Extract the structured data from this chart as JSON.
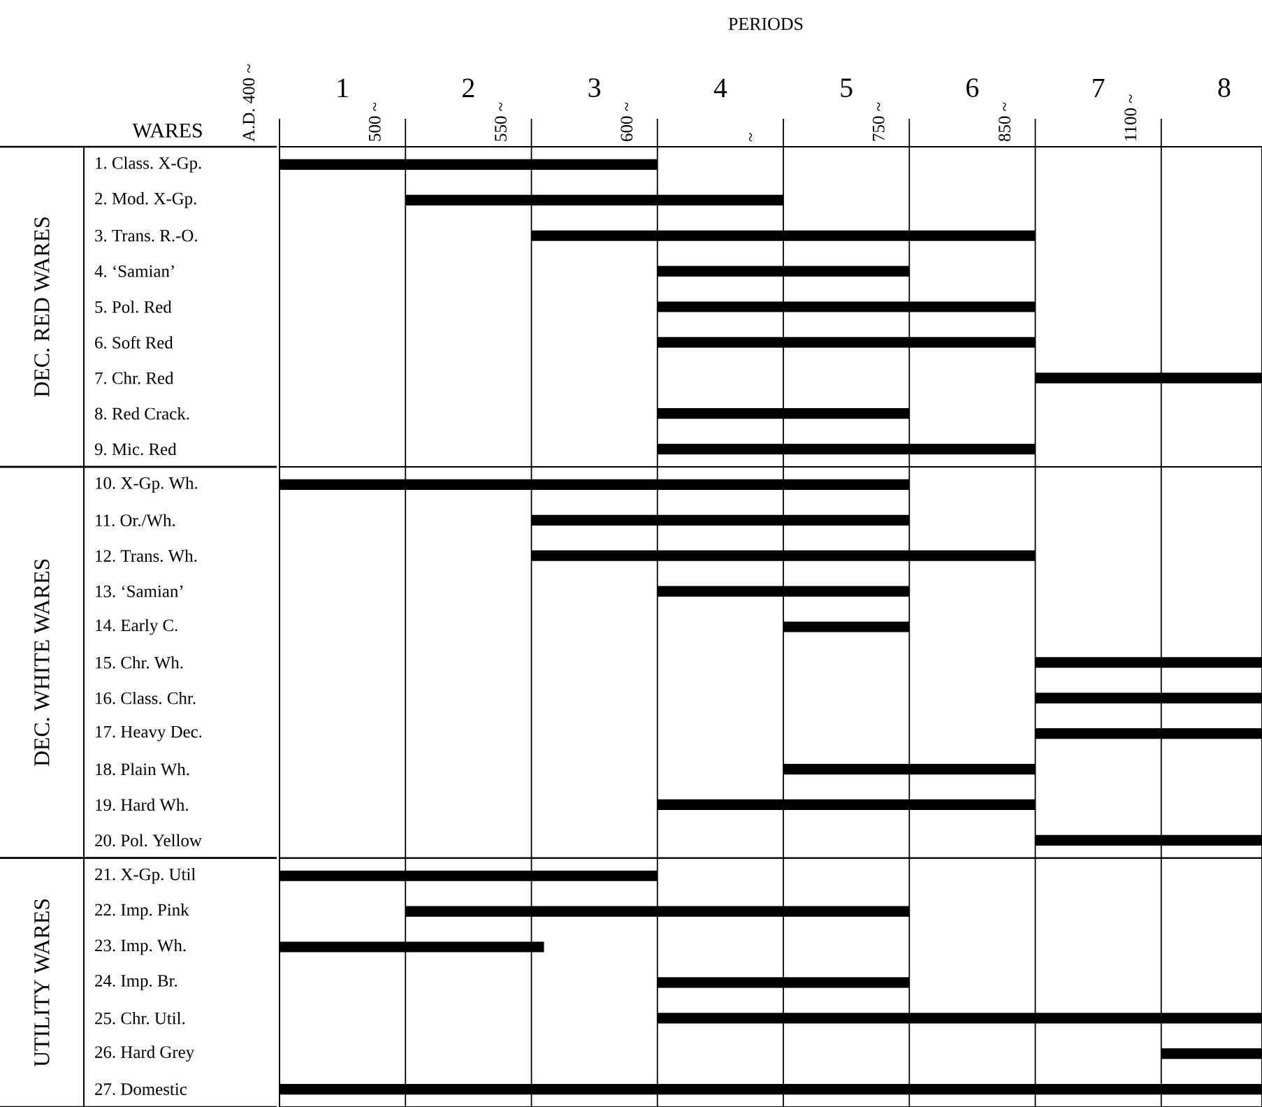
{
  "chart_data": [
    {
      "type": "bar",
      "orientation": "horizontal",
      "xlabel": "PERIODS",
      "ylabel": "DEC. RED WARES",
      "color": "#000000",
      "annotations": [
        "WARES",
        "A.D. 400 ~",
        "500 ~",
        "550 ~",
        "600 ~",
        "~",
        "750 ~",
        "850 ~",
        "1100 ~"
      ],
      "categories": [
        "1. Class. X-Gp.",
        "2. Mod. X-Gp.",
        "3. Trans. R.-O.",
        "4. ‘Samian’",
        "5. Pol. Red",
        "6. Soft Red",
        "7. Chr. Red",
        "8. Red Crack.",
        "9. Mic. Red"
      ],
      "base": [
        0.5,
        1.5,
        2.5,
        3.5,
        3.5,
        3.5,
        6.5,
        3.5,
        3.5
      ],
      "values": [
        3,
        3,
        4,
        2,
        3,
        3,
        1.8,
        2,
        3
      ],
      "xlim": [
        0.5,
        8.3
      ],
      "xticks": [
        1,
        2,
        3,
        4,
        5,
        6,
        7,
        8
      ],
      "ref_lines": [
        {
          "axis": "x",
          "value": 1.5
        },
        {
          "axis": "x",
          "value": 2.5
        },
        {
          "axis": "x",
          "value": 3.5
        },
        {
          "axis": "x",
          "value": 4.5
        },
        {
          "axis": "x",
          "value": 5.5
        },
        {
          "axis": "x",
          "value": 6.5
        },
        {
          "axis": "x",
          "value": 7.5
        }
      ]
    },
    {
      "type": "bar",
      "orientation": "horizontal",
      "ylabel": "DEC. WHITE WARES",
      "color": "#000000",
      "tick_labels": "y",
      "categories": [
        "10. X-Gp. Wh.",
        "11. Or./Wh.",
        "12. Trans. Wh.",
        "13. ‘Samian’",
        "14. Early C.",
        "15. Chr. Wh.",
        "16. Class. Chr.",
        "17. Heavy Dec.",
        "18. Plain Wh.",
        "19. Hard Wh.",
        "20. Pol. Yellow"
      ],
      "base": [
        0.5,
        2.5,
        2.5,
        3.5,
        4.5,
        6.5,
        6.5,
        6.5,
        4.5,
        3.5,
        6.5
      ],
      "values": [
        5,
        3,
        4,
        2,
        1,
        1.8,
        1.8,
        1.8,
        2,
        3,
        1.8
      ],
      "xlim": [
        0.5,
        8.3
      ],
      "ref_lines": [
        {
          "axis": "x",
          "value": 1.5
        },
        {
          "axis": "x",
          "value": 2.5
        },
        {
          "axis": "x",
          "value": 3.5
        },
        {
          "axis": "x",
          "value": 4.5
        },
        {
          "axis": "x",
          "value": 5.5
        },
        {
          "axis": "x",
          "value": 6.5
        },
        {
          "axis": "x",
          "value": 7.5
        }
      ]
    },
    {
      "type": "bar",
      "orientation": "horizontal",
      "ylabel": "UTILITY WARES",
      "color": "#000000",
      "tick_labels": "y",
      "categories": [
        "21. X-Gp. Util",
        "22. Imp. Pink",
        "23. Imp. Wh.",
        "24. Imp. Br.",
        "25. Chr. Util.",
        "26. Hard Grey",
        "27. Domestic"
      ],
      "base": [
        0.5,
        1.5,
        0.5,
        3.5,
        3.5,
        7.5,
        0.5
      ],
      "values": [
        3,
        4,
        2.1,
        2,
        4.8,
        0.8,
        7.8
      ],
      "xlim": [
        0.5,
        8.3
      ],
      "ref_lines": [
        {
          "axis": "x",
          "value": 1.5
        },
        {
          "axis": "x",
          "value": 2.5
        },
        {
          "axis": "x",
          "value": 3.5
        },
        {
          "axis": "x",
          "value": 4.5
        },
        {
          "axis": "x",
          "value": 5.5
        },
        {
          "axis": "x",
          "value": 6.5
        },
        {
          "axis": "x",
          "value": 7.5
        }
      ]
    }
  ]
}
